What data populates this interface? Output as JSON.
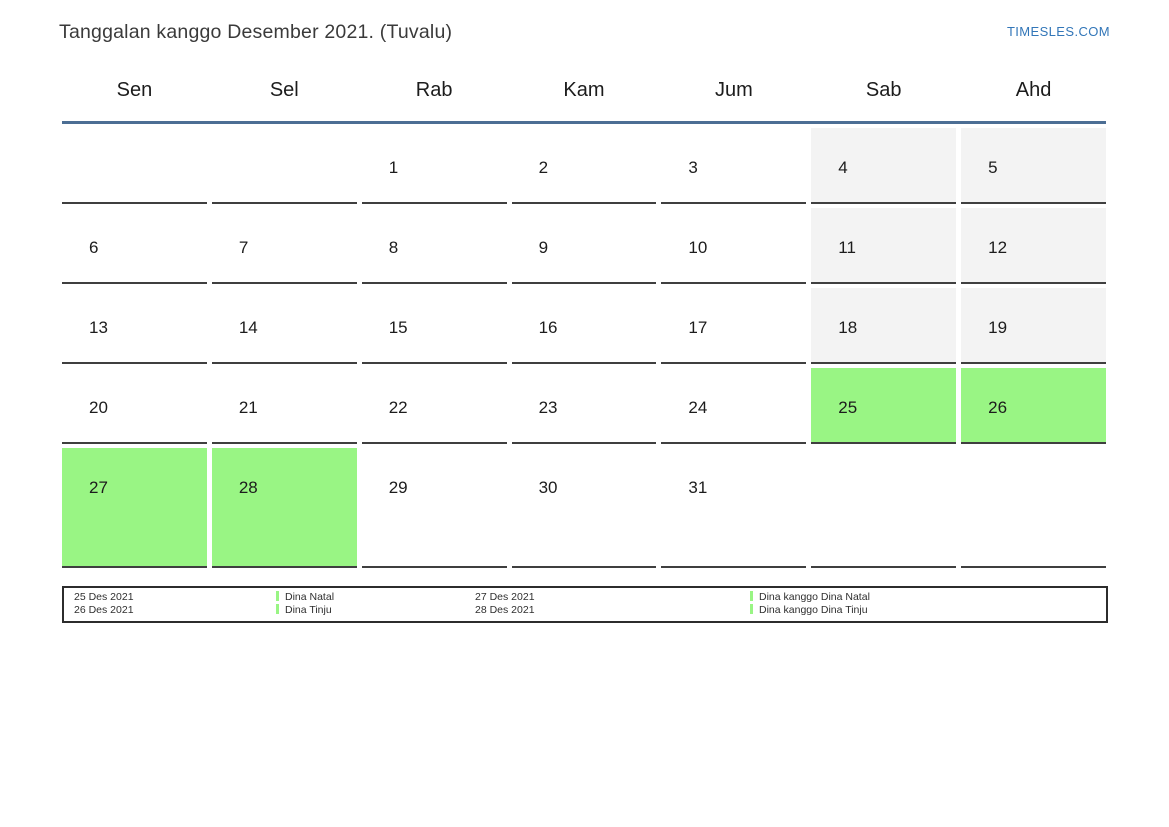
{
  "page": {
    "title": "Tanggalan kanggo Desember 2021. (Tuvalu)",
    "site_link": "TIMESLES.COM"
  },
  "calendar": {
    "day_headers": [
      "Sen",
      "Sel",
      "Rab",
      "Kam",
      "Jum",
      "Sab",
      "Ahd"
    ],
    "weeks": [
      [
        {
          "label": "",
          "type": "empty"
        },
        {
          "label": "",
          "type": "empty"
        },
        {
          "label": "1",
          "type": "normal"
        },
        {
          "label": "2",
          "type": "normal"
        },
        {
          "label": "3",
          "type": "normal"
        },
        {
          "label": "4",
          "type": "weekend"
        },
        {
          "label": "5",
          "type": "weekend"
        }
      ],
      [
        {
          "label": "6",
          "type": "normal"
        },
        {
          "label": "7",
          "type": "normal"
        },
        {
          "label": "8",
          "type": "normal"
        },
        {
          "label": "9",
          "type": "normal"
        },
        {
          "label": "10",
          "type": "normal"
        },
        {
          "label": "11",
          "type": "weekend"
        },
        {
          "label": "12",
          "type": "weekend"
        }
      ],
      [
        {
          "label": "13",
          "type": "normal"
        },
        {
          "label": "14",
          "type": "normal"
        },
        {
          "label": "15",
          "type": "normal"
        },
        {
          "label": "16",
          "type": "normal"
        },
        {
          "label": "17",
          "type": "normal"
        },
        {
          "label": "18",
          "type": "weekend"
        },
        {
          "label": "19",
          "type": "weekend"
        }
      ],
      [
        {
          "label": "20",
          "type": "normal"
        },
        {
          "label": "21",
          "type": "normal"
        },
        {
          "label": "22",
          "type": "normal"
        },
        {
          "label": "23",
          "type": "normal"
        },
        {
          "label": "24",
          "type": "normal"
        },
        {
          "label": "25",
          "type": "holiday"
        },
        {
          "label": "26",
          "type": "holiday"
        }
      ],
      [
        {
          "label": "27",
          "type": "holiday"
        },
        {
          "label": "28",
          "type": "holiday"
        },
        {
          "label": "29",
          "type": "normal"
        },
        {
          "label": "30",
          "type": "normal"
        },
        {
          "label": "31",
          "type": "normal"
        },
        {
          "label": "",
          "type": "empty"
        },
        {
          "label": "",
          "type": "empty"
        }
      ]
    ]
  },
  "legend": {
    "groups": [
      {
        "dates": [
          "25 Des 2021",
          "26 Des 2021"
        ],
        "items": [
          "Dina Natal",
          "Dina Tinju"
        ]
      },
      {
        "dates": [
          "27 Des 2021",
          "28 Des 2021"
        ],
        "items": [
          "Dina kanggo Dina Natal",
          "Dina kanggo Dina Tinju"
        ]
      }
    ]
  },
  "colors": {
    "holiday_green": "#99f584",
    "weekend_gray": "#f3f3f3",
    "header_line_blue": "#4c6e94",
    "link_blue": "#3276b8",
    "cell_border": "#3f3f3f"
  }
}
